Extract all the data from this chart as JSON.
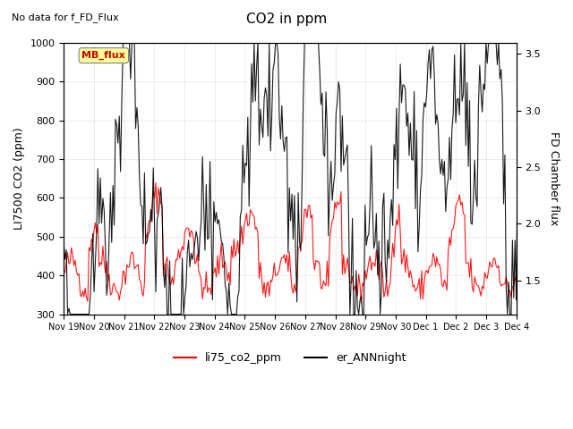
{
  "title": "CO2 in ppm",
  "subtitle": "No data for f_FD_Flux",
  "ylabel_left": "LI7500 CO2 (ppm)",
  "ylabel_right": "FD Chamber flux",
  "ylim_left": [
    300,
    1000
  ],
  "ylim_right": [
    1.2,
    3.6
  ],
  "legend_labels": [
    "li75_co2_ppm",
    "er_ANNnight"
  ],
  "legend_colors": [
    "red",
    "black"
  ],
  "mb_flux_label": "MB_flux",
  "mb_flux_color": "#cc0000",
  "mb_flux_bg": "#ffff99",
  "x_tick_labels": [
    "Nov 19",
    "Nov 20",
    "Nov 21",
    "Nov 22",
    "Nov 23",
    "Nov 24",
    "Nov 25",
    "Nov 26",
    "Nov 27",
    "Nov 28",
    "Nov 29",
    "Nov 30",
    "Dec 1",
    "Dec 2",
    "Dec 3",
    "Dec 4"
  ],
  "figsize": [
    6.4,
    4.8
  ],
  "dpi": 100
}
